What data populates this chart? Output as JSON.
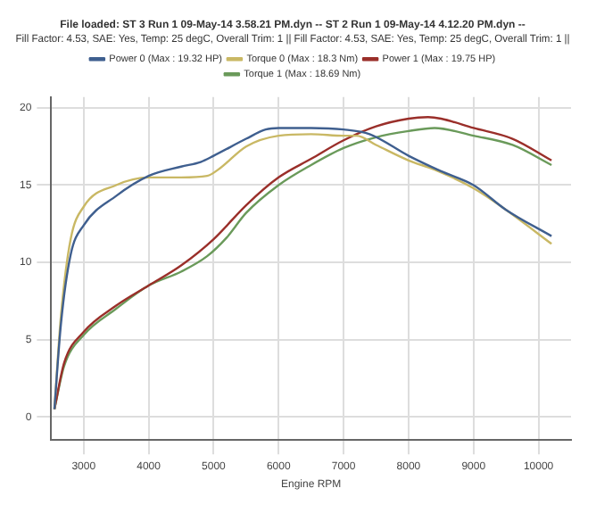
{
  "chart_data": {
    "type": "line",
    "title": "File loaded: ST 3 Run 1 09-May-14 3.58.21 PM.dyn -- ST 2 Run 1 09-May-14 4.12.20 PM.dyn --",
    "subtitle": "Fill Factor: 4.53, SAE: Yes, Temp: 25 degC, Overall Trim: 1 || Fill Factor: 4.53, SAE: Yes, Temp: 25 degC, Overall Trim: 1 ||",
    "xlabel": "Engine RPM",
    "xlim": [
      2500,
      10500
    ],
    "xticks": [
      3000,
      4000,
      5000,
      6000,
      7000,
      8000,
      9000,
      10000
    ],
    "ylim": [
      -1.5,
      20.7
    ],
    "yticks": [
      0,
      5,
      10,
      15,
      20
    ],
    "grid": true,
    "legend": "top",
    "marker": "none",
    "line_style": "solid",
    "series": [
      {
        "name": "Power 0 (Max : 19.32 HP)",
        "color": "#3f5f8f",
        "x": [
          2550,
          2650,
          2800,
          3000,
          3500,
          4000,
          4500,
          4800,
          5000,
          5500,
          5800,
          6000,
          6500,
          7000,
          7400,
          8000,
          8500,
          9000,
          9500,
          10200
        ],
        "values": [
          0.5,
          6,
          10.5,
          12.4,
          14.3,
          15.6,
          16.2,
          16.5,
          16.9,
          18.0,
          18.6,
          18.7,
          18.7,
          18.6,
          18.3,
          16.9,
          15.9,
          15.0,
          13.4,
          11.7
        ]
      },
      {
        "name": "Torque 0 (Max : 18.3 Nm)",
        "color": "#c9b864",
        "x": [
          2550,
          2650,
          2800,
          3000,
          3500,
          4000,
          4500,
          4900,
          5100,
          5500,
          6000,
          6500,
          7000,
          7200,
          7500,
          8000,
          8400,
          9000,
          9500,
          10200
        ],
        "values": [
          0.5,
          6.5,
          11.5,
          13.6,
          15.0,
          15.5,
          15.5,
          15.6,
          16.1,
          17.5,
          18.2,
          18.3,
          18.2,
          18.2,
          17.6,
          16.6,
          16.0,
          14.8,
          13.4,
          11.2
        ]
      },
      {
        "name": "Power 1 (Max : 19.75 HP)",
        "color": "#9a2f2a",
        "x": [
          2550,
          2700,
          3000,
          3500,
          4000,
          4500,
          5000,
          5500,
          6000,
          6500,
          7000,
          7500,
          8000,
          8300,
          8500,
          9000,
          9600,
          10200
        ],
        "values": [
          0.5,
          3.5,
          5.5,
          7.2,
          8.5,
          9.8,
          11.5,
          13.7,
          15.5,
          16.7,
          17.9,
          18.8,
          19.3,
          19.4,
          19.3,
          18.7,
          18.0,
          16.6
        ]
      },
      {
        "name": "Torque 1 (Max : 18.69 Nm)",
        "color": "#6a9a5a",
        "x": [
          2550,
          2700,
          3000,
          3500,
          4000,
          4500,
          4900,
          5200,
          5500,
          6000,
          6500,
          7000,
          7500,
          8000,
          8400,
          9000,
          9600,
          10200
        ],
        "values": [
          0.5,
          3.3,
          5.3,
          7.0,
          8.5,
          9.4,
          10.4,
          11.6,
          13.2,
          15.0,
          16.3,
          17.4,
          18.1,
          18.5,
          18.7,
          18.2,
          17.6,
          16.3
        ]
      }
    ]
  }
}
